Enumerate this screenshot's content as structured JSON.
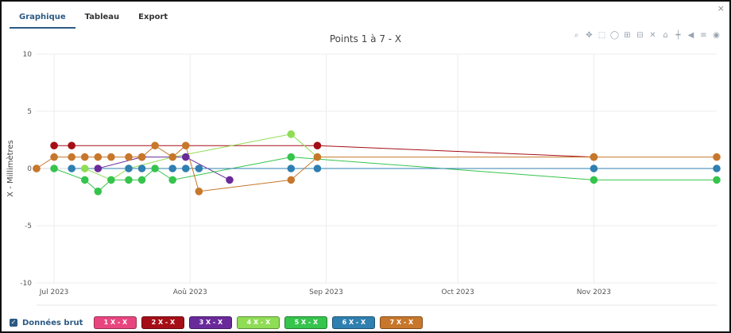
{
  "tabs": [
    {
      "label": "Graphique",
      "active": true
    },
    {
      "label": "Tableau",
      "active": false
    },
    {
      "label": "Export",
      "active": false
    }
  ],
  "close_label": "×",
  "modebar_icons": [
    "zoom-icon",
    "pan-icon",
    "box-select-icon",
    "lasso-icon",
    "zoom-in-icon",
    "zoom-out-icon",
    "autoscale-icon",
    "reset-axes-icon",
    "spike-lines-icon",
    "hover-closest-icon",
    "hover-compare-icon",
    "camera-icon"
  ],
  "raw_data": {
    "label": "Données brut",
    "checked": true
  },
  "chart_data": {
    "type": "line",
    "title": "Points 1 à 7 - X",
    "xlabel": "",
    "ylabel": "X - Millimètres",
    "ylim": [
      -10,
      10
    ],
    "yticks": [
      10,
      5,
      0,
      -5,
      -10
    ],
    "xlim": [
      "2023-06-27",
      "2023-11-29"
    ],
    "xticks": [
      {
        "date": "2023-07-01",
        "label": "Jul 2023"
      },
      {
        "date": "2023-08-01",
        "label": "Aoû 2023"
      },
      {
        "date": "2023-09-01",
        "label": "Sep 2023"
      },
      {
        "date": "2023-10-01",
        "label": "Oct 2023"
      },
      {
        "date": "2023-11-01",
        "label": "Nov 2023"
      }
    ],
    "x": [
      "2023-06-27",
      "2023-07-01",
      "2023-07-05",
      "2023-07-08",
      "2023-07-11",
      "2023-07-14",
      "2023-07-18",
      "2023-07-21",
      "2023-07-24",
      "2023-07-28",
      "2023-07-31",
      "2023-08-03",
      "2023-08-10",
      "2023-08-24",
      "2023-08-30",
      "2023-11-01",
      "2023-11-29"
    ],
    "series": [
      {
        "name": "1 X - X",
        "color": "#e8457f",
        "values": [
          0,
          null,
          null,
          null,
          null,
          null,
          null,
          null,
          null,
          null,
          null,
          null,
          null,
          null,
          null,
          null,
          null
        ]
      },
      {
        "name": "2 X - X",
        "color": "#a50e16",
        "values": [
          null,
          2,
          2,
          null,
          null,
          null,
          null,
          null,
          null,
          null,
          null,
          null,
          null,
          null,
          2,
          1,
          null
        ]
      },
      {
        "name": "3 X - X",
        "color": "#6a2b9a",
        "values": [
          null,
          null,
          null,
          null,
          0,
          null,
          null,
          1,
          null,
          null,
          1,
          null,
          -1,
          null,
          null,
          null,
          null
        ]
      },
      {
        "name": "4 X - X",
        "color": "#8fdc55",
        "values": [
          null,
          null,
          null,
          0,
          null,
          -1,
          0,
          null,
          null,
          1,
          null,
          null,
          null,
          3,
          1,
          null,
          null
        ]
      },
      {
        "name": "5 X - X",
        "color": "#35c44c",
        "values": [
          null,
          0,
          null,
          -1,
          -2,
          -1,
          -1,
          -1,
          0,
          -1,
          null,
          null,
          null,
          1,
          null,
          -1,
          -1
        ]
      },
      {
        "name": "6 X - X",
        "color": "#2f7fb0",
        "values": [
          null,
          null,
          0,
          null,
          null,
          null,
          0,
          0,
          null,
          0,
          0,
          0,
          null,
          0,
          0,
          0,
          0
        ]
      },
      {
        "name": "7 X - X",
        "color": "#c7772b",
        "values": [
          0,
          1,
          1,
          1,
          1,
          1,
          1,
          1,
          2,
          1,
          2,
          -2,
          null,
          -1,
          1,
          1,
          1
        ]
      }
    ],
    "grid": true,
    "legend_position": "bottom"
  }
}
